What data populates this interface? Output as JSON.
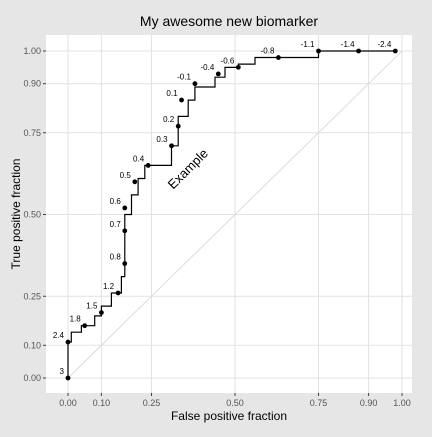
{
  "chart_data": {
    "type": "line",
    "title": "My awesome new biomarker",
    "xlabel": "False positive fraction",
    "ylabel": "True positive fraction",
    "xlim": [
      0,
      1
    ],
    "ylim": [
      0,
      1
    ],
    "x_ticks": [
      0.0,
      0.1,
      0.25,
      0.5,
      0.75,
      0.9,
      1.0
    ],
    "x_tick_labels": [
      "0.00",
      "0.10",
      "0.25",
      "0.50",
      "0.75",
      "0.90",
      "1.00"
    ],
    "y_ticks": [
      0.0,
      0.1,
      0.25,
      0.5,
      0.75,
      0.9,
      1.0
    ],
    "y_tick_labels": [
      "0.00",
      "0.10",
      "0.25",
      "0.50",
      "0.75",
      "0.90",
      "1.00"
    ],
    "grid": true,
    "reference_line": "diagonal",
    "annotation": "Example",
    "steps": [
      [
        0.0,
        0.0
      ],
      [
        0.0,
        0.11
      ],
      [
        0.01,
        0.11
      ],
      [
        0.01,
        0.14
      ],
      [
        0.04,
        0.14
      ],
      [
        0.04,
        0.16
      ],
      [
        0.08,
        0.16
      ],
      [
        0.08,
        0.19
      ],
      [
        0.1,
        0.19
      ],
      [
        0.1,
        0.22
      ],
      [
        0.13,
        0.22
      ],
      [
        0.13,
        0.26
      ],
      [
        0.16,
        0.26
      ],
      [
        0.16,
        0.31
      ],
      [
        0.17,
        0.31
      ],
      [
        0.17,
        0.39
      ],
      [
        0.17,
        0.5
      ],
      [
        0.19,
        0.5
      ],
      [
        0.19,
        0.56
      ],
      [
        0.21,
        0.56
      ],
      [
        0.21,
        0.61
      ],
      [
        0.23,
        0.61
      ],
      [
        0.23,
        0.65
      ],
      [
        0.31,
        0.65
      ],
      [
        0.31,
        0.71
      ],
      [
        0.33,
        0.71
      ],
      [
        0.33,
        0.8
      ],
      [
        0.36,
        0.8
      ],
      [
        0.36,
        0.85
      ],
      [
        0.38,
        0.85
      ],
      [
        0.38,
        0.89
      ],
      [
        0.44,
        0.89
      ],
      [
        0.44,
        0.92
      ],
      [
        0.47,
        0.92
      ],
      [
        0.47,
        0.95
      ],
      [
        0.51,
        0.95
      ],
      [
        0.51,
        0.96
      ],
      [
        0.56,
        0.96
      ],
      [
        0.56,
        0.98
      ],
      [
        0.63,
        0.98
      ],
      [
        0.75,
        0.98
      ],
      [
        0.75,
        1.0
      ],
      [
        0.98,
        1.0
      ]
    ],
    "points": [
      {
        "x": 0.0,
        "y": 0.0,
        "label": "3"
      },
      {
        "x": 0.0,
        "y": 0.11,
        "label": "2.4"
      },
      {
        "x": 0.05,
        "y": 0.16,
        "label": "1.8"
      },
      {
        "x": 0.1,
        "y": 0.2,
        "label": "1.5"
      },
      {
        "x": 0.15,
        "y": 0.26,
        "label": "1.2"
      },
      {
        "x": 0.17,
        "y": 0.35,
        "label": "0.8"
      },
      {
        "x": 0.17,
        "y": 0.45,
        "label": "0.7"
      },
      {
        "x": 0.17,
        "y": 0.52,
        "label": "0.6"
      },
      {
        "x": 0.2,
        "y": 0.6,
        "label": "0.5"
      },
      {
        "x": 0.24,
        "y": 0.65,
        "label": "0.4"
      },
      {
        "x": 0.31,
        "y": 0.71,
        "label": "0.3"
      },
      {
        "x": 0.33,
        "y": 0.77,
        "label": "0.2"
      },
      {
        "x": 0.34,
        "y": 0.85,
        "label": "0.1"
      },
      {
        "x": 0.38,
        "y": 0.9,
        "label": "-0.1"
      },
      {
        "x": 0.45,
        "y": 0.93,
        "label": "-0.4"
      },
      {
        "x": 0.51,
        "y": 0.95,
        "label": "-0.6"
      },
      {
        "x": 0.63,
        "y": 0.98,
        "label": "-0.8"
      },
      {
        "x": 0.75,
        "y": 1.0,
        "label": "-1.1"
      },
      {
        "x": 0.87,
        "y": 1.0,
        "label": "-1.4"
      },
      {
        "x": 0.98,
        "y": 1.0,
        "label": "-2.4"
      }
    ]
  }
}
